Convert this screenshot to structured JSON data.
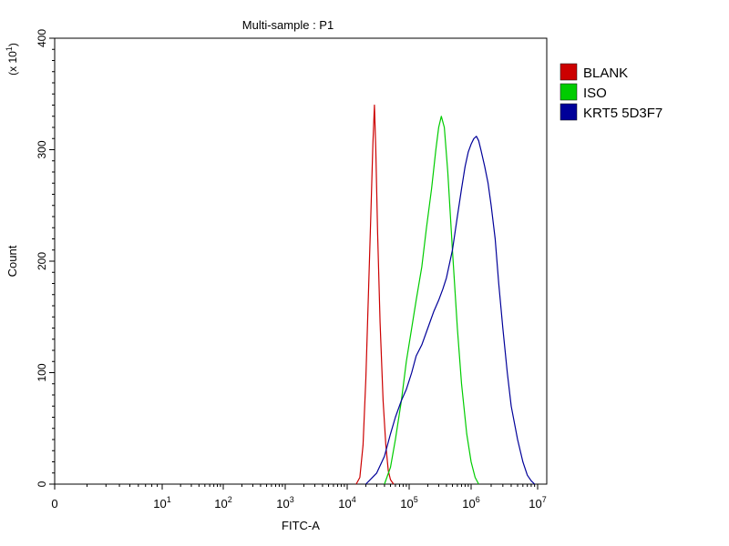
{
  "chart_data": {
    "type": "line",
    "title": "Multi-sample : P1",
    "xlabel": "FITC-A",
    "ylabel": "Count",
    "y_multiplier": "(x 10",
    "y_multiplier_exp": "1",
    "y_multiplier_close": ")",
    "x_scale": "log",
    "xlim": [
      0,
      10000000
    ],
    "ylim": [
      0,
      400
    ],
    "grid": false,
    "legend_position": "right",
    "x_ticks": [
      {
        "value": 0,
        "label": "0"
      },
      {
        "value": 10,
        "base": "10",
        "exp": "1"
      },
      {
        "value": 100,
        "base": "10",
        "exp": "2"
      },
      {
        "value": 1000,
        "base": "10",
        "exp": "3"
      },
      {
        "value": 10000,
        "base": "10",
        "exp": "4"
      },
      {
        "value": 100000,
        "base": "10",
        "exp": "5"
      },
      {
        "value": 1000000,
        "base": "10",
        "exp": "6"
      },
      {
        "value": 10000000,
        "base": "10",
        "exp": "7"
      }
    ],
    "y_ticks": [
      0,
      100,
      200,
      300,
      400
    ],
    "series": [
      {
        "name": "BLANK",
        "color": "#cc0000",
        "x": [
          14000,
          16000,
          18000,
          20000,
          22000,
          24000,
          26000,
          27500,
          29000,
          31000,
          34000,
          38000,
          42000,
          46000,
          50000,
          56000
        ],
        "y": [
          0,
          6,
          35,
          95,
          170,
          240,
          305,
          340,
          300,
          225,
          145,
          75,
          35,
          12,
          4,
          0
        ]
      },
      {
        "name": "ISO",
        "color": "#00cc00",
        "x": [
          40000,
          50000,
          60000,
          75000,
          90000,
          110000,
          130000,
          160000,
          190000,
          230000,
          270000,
          300000,
          330000,
          370000,
          420000,
          500000,
          600000,
          700000,
          850000,
          1000000,
          1150000,
          1300000
        ],
        "y": [
          0,
          15,
          40,
          75,
          110,
          140,
          165,
          195,
          230,
          265,
          300,
          320,
          330,
          320,
          280,
          210,
          140,
          90,
          45,
          20,
          6,
          0
        ]
      },
      {
        "name": "KRT5 5D3F7",
        "color": "#000099",
        "x": [
          20000,
          30000,
          40000,
          50000,
          60000,
          75000,
          90000,
          110000,
          130000,
          160000,
          200000,
          250000,
          300000,
          350000,
          400000,
          500000,
          600000,
          700000,
          800000,
          900000,
          1000000,
          1100000,
          1200000,
          1300000,
          1400000,
          1600000,
          1800000,
          2000000,
          2300000,
          2600000,
          3000000,
          3500000,
          4000000,
          5000000,
          6000000,
          7000000,
          8000000,
          9000000
        ],
        "y": [
          0,
          10,
          25,
          45,
          60,
          75,
          85,
          100,
          115,
          125,
          140,
          155,
          165,
          175,
          185,
          210,
          240,
          265,
          285,
          298,
          305,
          310,
          312,
          308,
          300,
          285,
          270,
          250,
          220,
          180,
          140,
          100,
          70,
          40,
          20,
          8,
          3,
          0
        ]
      }
    ]
  }
}
